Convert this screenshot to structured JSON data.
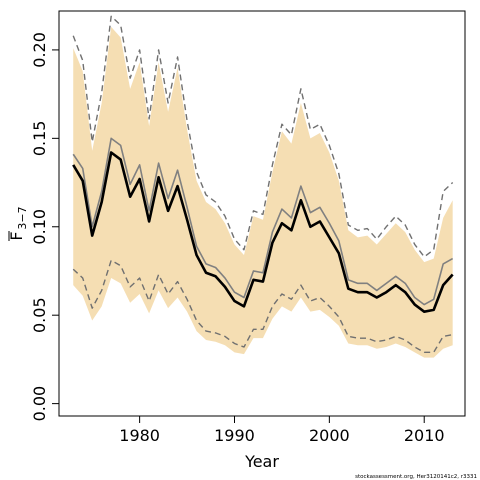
{
  "chart_data": {
    "type": "line",
    "xlabel": "Year",
    "ylabel": "F",
    "ylabel_subscript": "3−7",
    "credit": "stockassessment.org, Her3120141c2, r3331",
    "xlim": [
      1971.5,
      2014.3
    ],
    "ylim": [
      -0.007,
      0.222
    ],
    "xticks": [
      1980,
      1990,
      2000,
      2010
    ],
    "yticks": [
      0.0,
      0.05,
      0.1,
      0.15,
      0.2
    ],
    "ytick_labels": [
      "0.00",
      "0.05",
      "0.10",
      "0.15",
      "0.20"
    ],
    "colors": {
      "band": "#f5deb3",
      "estimate": "#000000",
      "secondary": "#808080",
      "bounds": "#707070"
    },
    "x": [
      1973,
      1974,
      1975,
      1976,
      1977,
      1978,
      1979,
      1980,
      1981,
      1982,
      1983,
      1984,
      1985,
      1986,
      1987,
      1988,
      1989,
      1990,
      1991,
      1992,
      1993,
      1994,
      1995,
      1996,
      1997,
      1998,
      1999,
      2000,
      2001,
      2002,
      2003,
      2004,
      2005,
      2006,
      2007,
      2008,
      2009,
      2010,
      2011,
      2012,
      2013
    ],
    "series": [
      {
        "role": "band-upper",
        "values": [
          0.201,
          0.188,
          0.143,
          0.17,
          0.213,
          0.207,
          0.178,
          0.193,
          0.157,
          0.193,
          0.165,
          0.19,
          0.155,
          0.126,
          0.114,
          0.11,
          0.102,
          0.09,
          0.084,
          0.106,
          0.104,
          0.131,
          0.154,
          0.147,
          0.17,
          0.15,
          0.153,
          0.142,
          0.126,
          0.098,
          0.094,
          0.095,
          0.09,
          0.096,
          0.102,
          0.097,
          0.087,
          0.08,
          0.082,
          0.105,
          0.115
        ]
      },
      {
        "role": "band-lower",
        "values": [
          0.067,
          0.061,
          0.047,
          0.055,
          0.071,
          0.068,
          0.057,
          0.062,
          0.051,
          0.064,
          0.054,
          0.06,
          0.052,
          0.041,
          0.036,
          0.035,
          0.033,
          0.029,
          0.028,
          0.037,
          0.037,
          0.048,
          0.055,
          0.052,
          0.06,
          0.052,
          0.053,
          0.049,
          0.044,
          0.034,
          0.033,
          0.033,
          0.031,
          0.032,
          0.034,
          0.032,
          0.029,
          0.026,
          0.026,
          0.031,
          0.033
        ]
      },
      {
        "role": "upper-bound",
        "values": [
          0.208,
          0.194,
          0.148,
          0.176,
          0.219,
          0.214,
          0.184,
          0.2,
          0.161,
          0.2,
          0.17,
          0.196,
          0.16,
          0.131,
          0.118,
          0.114,
          0.106,
          0.093,
          0.087,
          0.109,
          0.107,
          0.135,
          0.158,
          0.152,
          0.178,
          0.155,
          0.158,
          0.146,
          0.13,
          0.101,
          0.098,
          0.099,
          0.093,
          0.1,
          0.106,
          0.101,
          0.09,
          0.083,
          0.087,
          0.12,
          0.125
        ]
      },
      {
        "role": "lower-bound",
        "values": [
          0.076,
          0.071,
          0.054,
          0.064,
          0.081,
          0.078,
          0.066,
          0.071,
          0.058,
          0.073,
          0.062,
          0.069,
          0.059,
          0.047,
          0.041,
          0.04,
          0.038,
          0.034,
          0.032,
          0.042,
          0.042,
          0.055,
          0.062,
          0.059,
          0.067,
          0.058,
          0.06,
          0.055,
          0.049,
          0.038,
          0.037,
          0.037,
          0.035,
          0.036,
          0.038,
          0.036,
          0.032,
          0.029,
          0.029,
          0.038,
          0.039
        ]
      },
      {
        "role": "secondary",
        "values": [
          0.141,
          0.133,
          0.1,
          0.12,
          0.15,
          0.146,
          0.124,
          0.135,
          0.109,
          0.136,
          0.116,
          0.132,
          0.111,
          0.089,
          0.079,
          0.077,
          0.071,
          0.063,
          0.06,
          0.075,
          0.074,
          0.097,
          0.11,
          0.105,
          0.123,
          0.108,
          0.111,
          0.102,
          0.092,
          0.07,
          0.068,
          0.068,
          0.064,
          0.068,
          0.072,
          0.068,
          0.06,
          0.056,
          0.059,
          0.079,
          0.082
        ]
      },
      {
        "role": "estimate",
        "values": [
          0.135,
          0.126,
          0.095,
          0.114,
          0.142,
          0.138,
          0.117,
          0.127,
          0.103,
          0.128,
          0.109,
          0.123,
          0.104,
          0.084,
          0.074,
          0.072,
          0.066,
          0.058,
          0.055,
          0.07,
          0.069,
          0.091,
          0.102,
          0.098,
          0.115,
          0.1,
          0.103,
          0.094,
          0.085,
          0.065,
          0.063,
          0.063,
          0.06,
          0.063,
          0.067,
          0.063,
          0.056,
          0.052,
          0.053,
          0.067,
          0.073
        ]
      }
    ]
  }
}
